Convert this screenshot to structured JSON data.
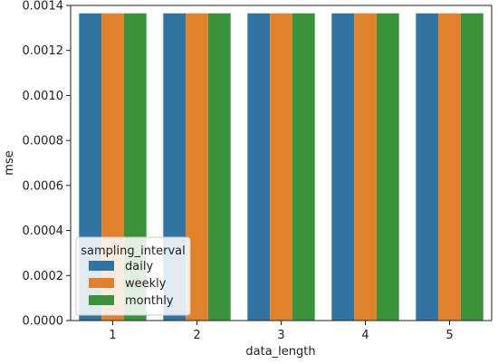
{
  "chart_data": {
    "type": "bar",
    "title": "",
    "xlabel": "data_length",
    "ylabel": "mse",
    "categories": [
      "1",
      "2",
      "3",
      "4",
      "5"
    ],
    "series": [
      {
        "name": "daily",
        "color": "#3274a1",
        "values": [
          0.001365,
          0.001365,
          0.001365,
          0.001365,
          0.001365
        ]
      },
      {
        "name": "weekly",
        "color": "#e1812c",
        "values": [
          0.001365,
          0.001365,
          0.001365,
          0.001365,
          0.001365
        ]
      },
      {
        "name": "monthly",
        "color": "#3a923a",
        "values": [
          0.001365,
          0.001365,
          0.001365,
          0.001365,
          0.001365
        ]
      }
    ],
    "ylim": [
      0,
      0.0014
    ],
    "yticks": [
      "0.0000",
      "0.0002",
      "0.0004",
      "0.0006",
      "0.0008",
      "0.0010",
      "0.0012",
      "0.0014"
    ],
    "grid": false,
    "legend": {
      "title": "sampling_interval",
      "placement": "lower-left"
    }
  }
}
